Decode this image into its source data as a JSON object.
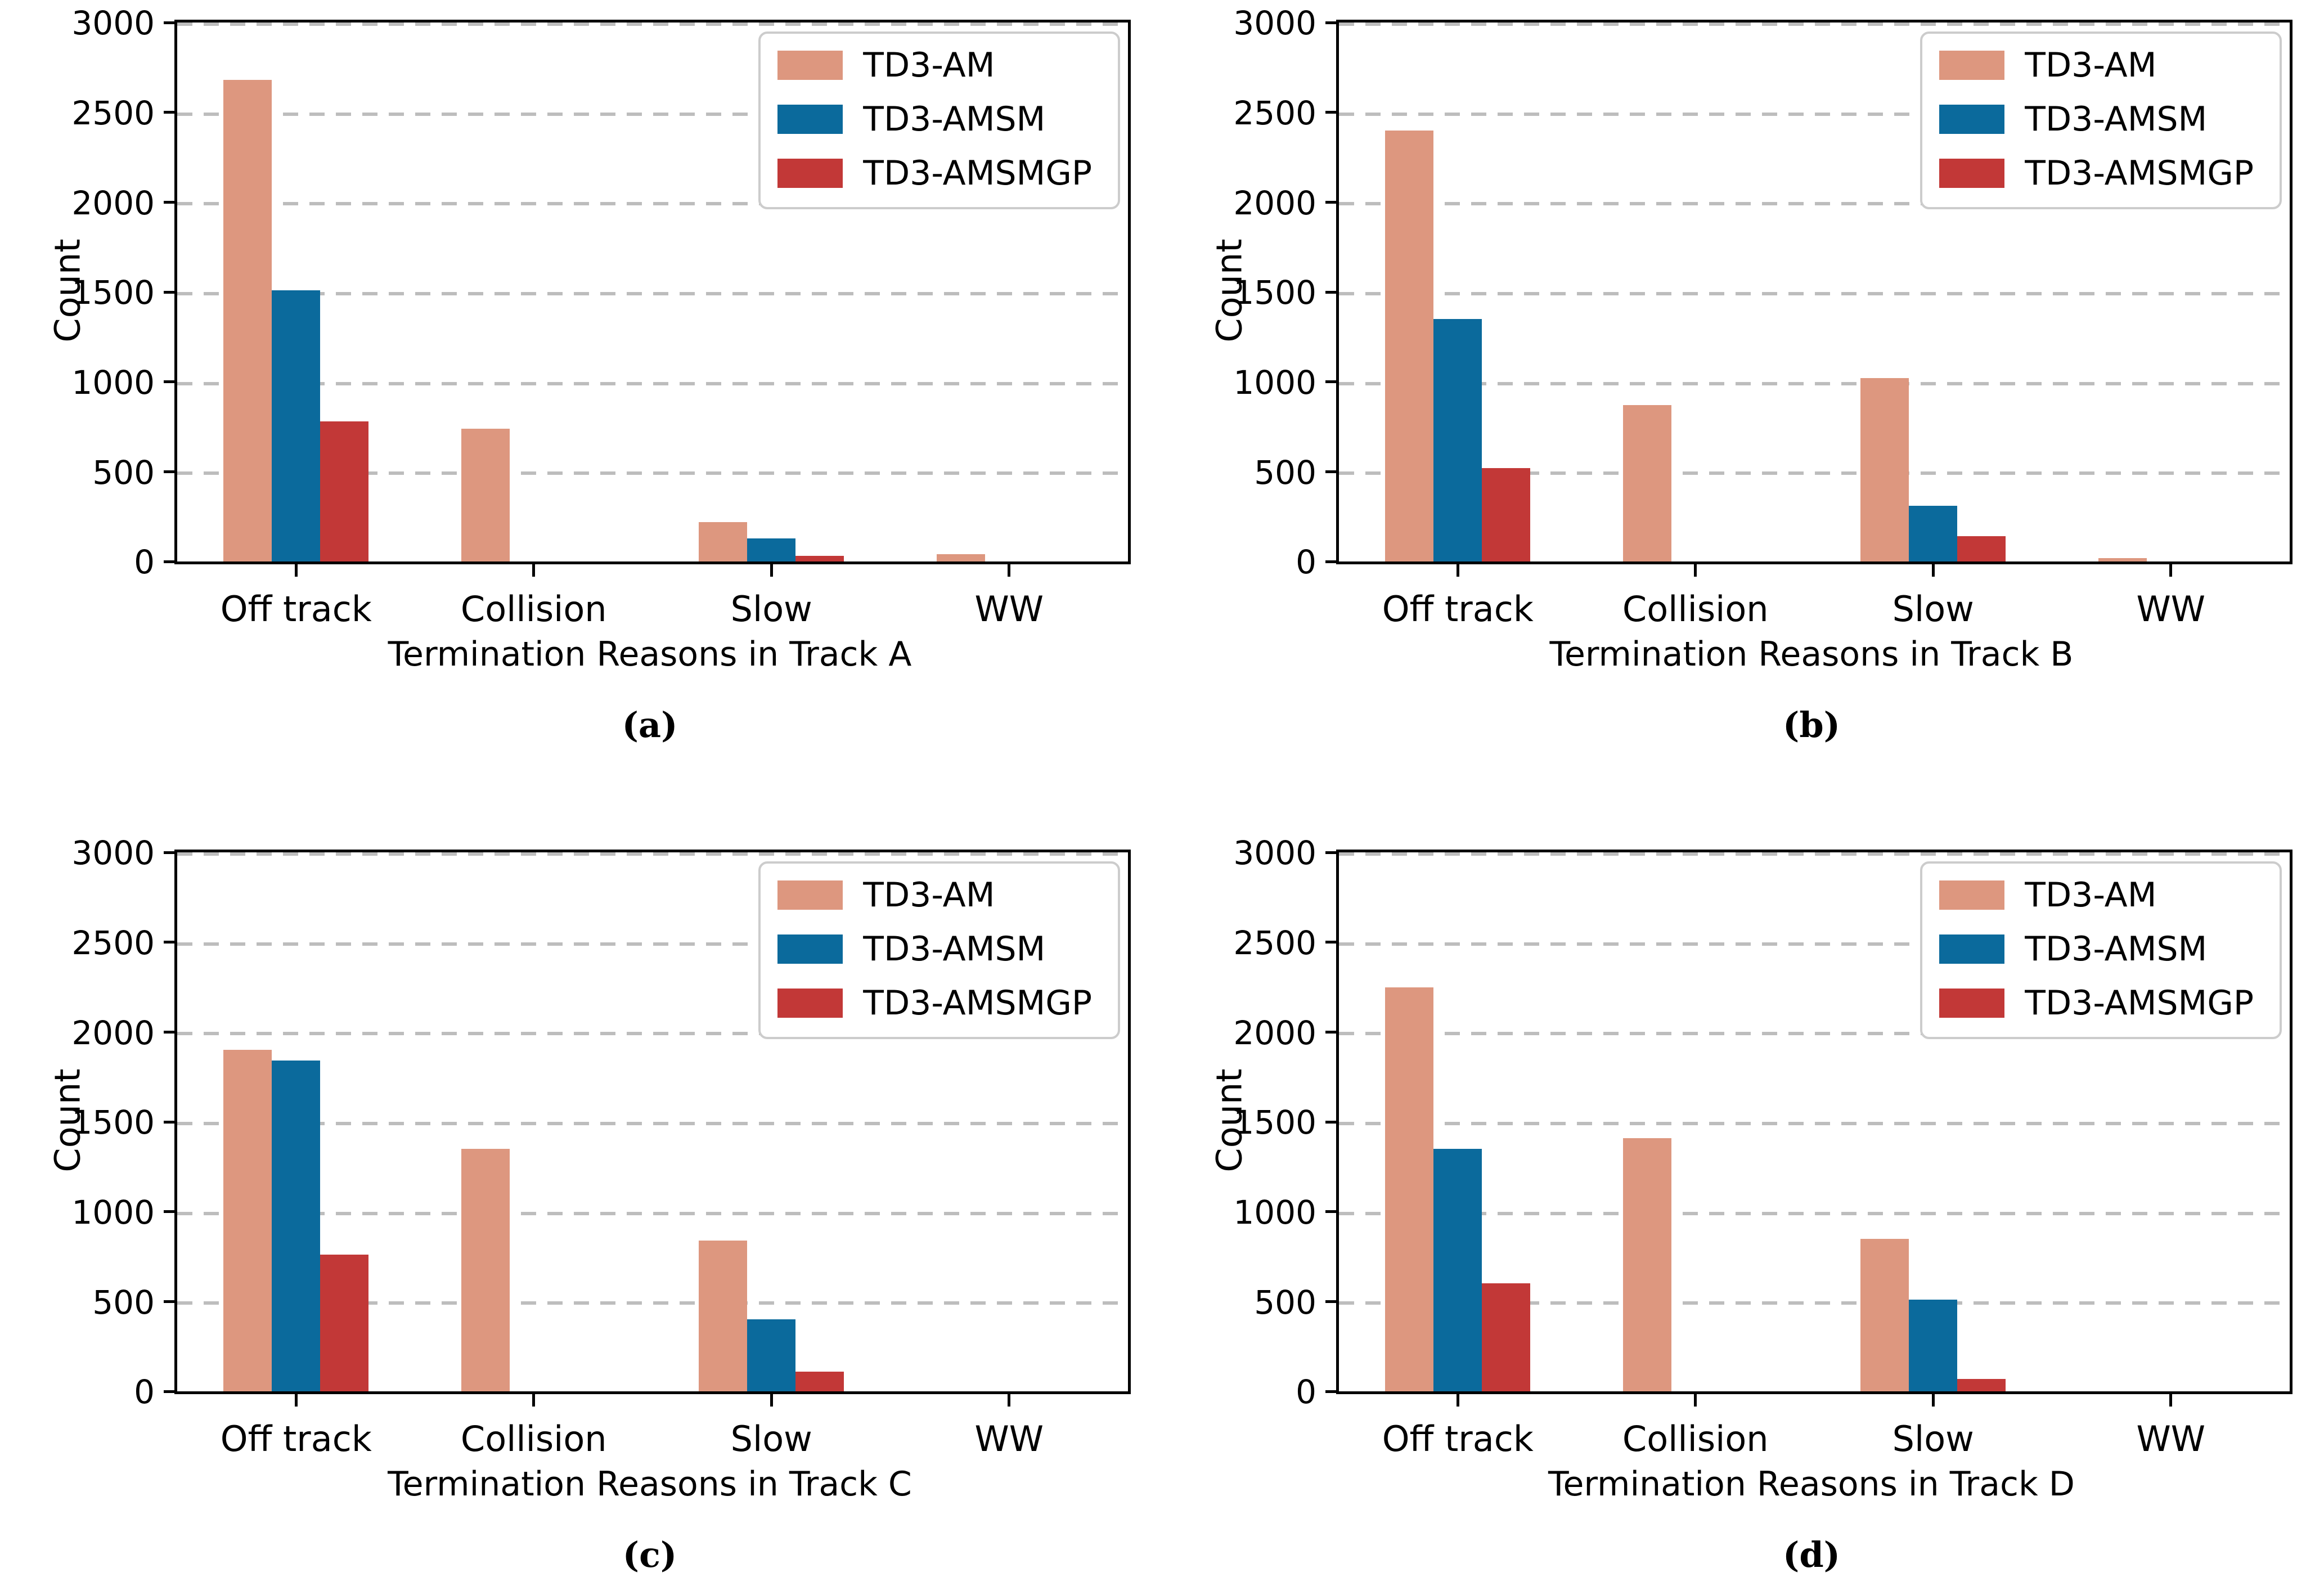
{
  "figure": {
    "kind": "2x2 grid of grouped bar charts",
    "background": "#ffffff"
  },
  "style": {
    "series_colors": {
      "TD3-AM": "#DD977F",
      "TD3-AMSM": "#0B6A9C",
      "TD3-AMSMGP": "#C23837"
    },
    "gridline_color": "#bdbdbd",
    "axis_color": "#000000",
    "legend_border_color": "#cccccc"
  },
  "chart_data": [
    {
      "type": "bar",
      "caption": "(a)",
      "xlabel": "Termination Reasons in Track A",
      "ylabel": "Count",
      "categories": [
        "Off track",
        "Collision",
        "Slow",
        "WW"
      ],
      "yticks": [
        0,
        500,
        1000,
        1500,
        2000,
        2500,
        3000
      ],
      "ylim": [
        0,
        3000
      ],
      "grid": "dashed-horizontal",
      "legend_position": "upper-right",
      "legend_entries": [
        "TD3-AM",
        "TD3-AMSM",
        "TD3-AMSMGP"
      ],
      "series": [
        {
          "name": "TD3-AM",
          "values": [
            2680,
            740,
            220,
            40
          ]
        },
        {
          "name": "TD3-AMSM",
          "values": [
            1510,
            0,
            130,
            0
          ]
        },
        {
          "name": "TD3-AMSMGP",
          "values": [
            780,
            0,
            30,
            0
          ]
        }
      ]
    },
    {
      "type": "bar",
      "caption": "(b)",
      "xlabel": "Termination Reasons in Track B",
      "ylabel": "Count",
      "categories": [
        "Off track",
        "Collision",
        "Slow",
        "WW"
      ],
      "yticks": [
        0,
        500,
        1000,
        1500,
        2000,
        2500,
        3000
      ],
      "ylim": [
        0,
        3000
      ],
      "grid": "dashed-horizontal",
      "legend_position": "upper-right",
      "legend_entries": [
        "TD3-AM",
        "TD3-AMSM",
        "TD3-AMSMGP"
      ],
      "series": [
        {
          "name": "TD3-AM",
          "values": [
            2400,
            870,
            1020,
            20
          ]
        },
        {
          "name": "TD3-AMSM",
          "values": [
            1350,
            0,
            310,
            0
          ]
        },
        {
          "name": "TD3-AMSMGP",
          "values": [
            520,
            0,
            140,
            0
          ]
        }
      ]
    },
    {
      "type": "bar",
      "caption": "(c)",
      "xlabel": "Termination Reasons in Track C",
      "ylabel": "Count",
      "categories": [
        "Off track",
        "Collision",
        "Slow",
        "WW"
      ],
      "yticks": [
        0,
        500,
        1000,
        1500,
        2000,
        2500,
        3000
      ],
      "ylim": [
        0,
        3000
      ],
      "grid": "dashed-horizontal",
      "legend_position": "upper-right",
      "legend_entries": [
        "TD3-AM",
        "TD3-AMSM",
        "TD3-AMSMGP"
      ],
      "series": [
        {
          "name": "TD3-AM",
          "values": [
            1900,
            1350,
            840,
            0
          ]
        },
        {
          "name": "TD3-AMSM",
          "values": [
            1840,
            0,
            400,
            0
          ]
        },
        {
          "name": "TD3-AMSMGP",
          "values": [
            760,
            0,
            110,
            0
          ]
        }
      ]
    },
    {
      "type": "bar",
      "caption": "(d)",
      "xlabel": "Termination Reasons in Track D",
      "ylabel": "Count",
      "categories": [
        "Off track",
        "Collision",
        "Slow",
        "WW"
      ],
      "yticks": [
        0,
        500,
        1000,
        1500,
        2000,
        2500,
        3000
      ],
      "ylim": [
        0,
        3000
      ],
      "grid": "dashed-horizontal",
      "legend_position": "upper-right",
      "legend_entries": [
        "TD3-AM",
        "TD3-AMSM",
        "TD3-AMSMGP"
      ],
      "series": [
        {
          "name": "TD3-AM",
          "values": [
            2250,
            1410,
            850,
            0
          ]
        },
        {
          "name": "TD3-AMSM",
          "values": [
            1350,
            0,
            510,
            0
          ]
        },
        {
          "name": "TD3-AMSMGP",
          "values": [
            600,
            0,
            70,
            0
          ]
        }
      ]
    }
  ]
}
